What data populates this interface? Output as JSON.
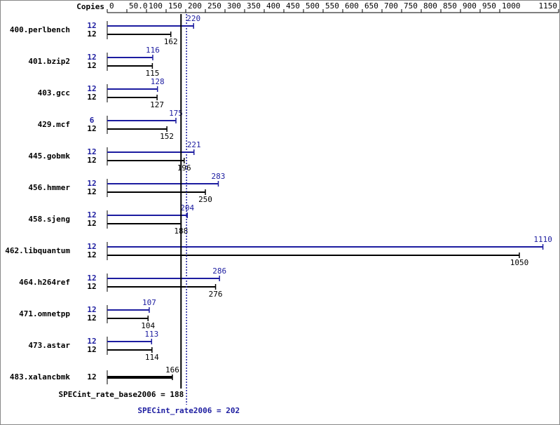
{
  "chart_data": {
    "type": "bar",
    "x_label": "Copies",
    "categories": [
      "400.perlbench",
      "401.bzip2",
      "403.gcc",
      "429.mcf",
      "445.gobmk",
      "456.hmmer",
      "458.sjeng",
      "462.libquantum",
      "464.h264ref",
      "471.omnetpp",
      "473.astar",
      "483.xalancbmk"
    ],
    "series": [
      {
        "color": "#1c1ca0",
        "copies": [
          12,
          12,
          12,
          6,
          12,
          12,
          12,
          12,
          12,
          12,
          12,
          null
        ],
        "values": [
          220,
          116,
          128,
          175,
          221,
          283,
          204,
          1110,
          286,
          107,
          113,
          null
        ]
      },
      {
        "color": "#000000",
        "copies": [
          12,
          12,
          12,
          12,
          12,
          12,
          12,
          12,
          12,
          12,
          12,
          12
        ],
        "values": [
          162,
          115,
          127,
          152,
          196,
          250,
          188,
          1050,
          276,
          104,
          114,
          166
        ]
      }
    ],
    "xlim": [
      0,
      1150
    ],
    "xticks": [
      0,
      {
        "value": 50,
        "label": "50.0"
      },
      100,
      150,
      200,
      250,
      300,
      350,
      400,
      450,
      500,
      550,
      600,
      650,
      700,
      750,
      800,
      850,
      900,
      950,
      1000,
      1150
    ],
    "reference_lines": [
      {
        "label": "SPECint_rate_base2006 = 188",
        "value": 188,
        "color": "#000000",
        "series": 1
      },
      {
        "label": "SPECint_rate2006 = 202",
        "value": 202,
        "color": "#1c1ca0",
        "series": 0
      }
    ]
  }
}
